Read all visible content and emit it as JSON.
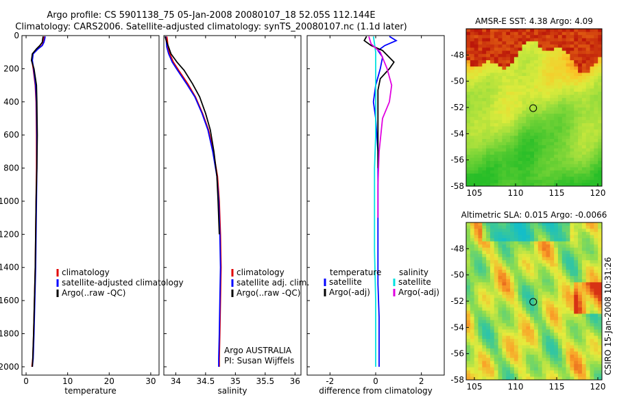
{
  "title_line1": "Argo profile: CS 5901138_75 05-Jan-2008 20080107_18 52.05S 112.144E",
  "title_line2": "Climatology: CARS2006. Satellite-adjusted climatology: synTS_20080107.nc (1.1d later)",
  "side_text": "CSIRO 15-Jan-2008 10:31:26",
  "colors": {
    "climatology": "#e00000",
    "satellite": "#0000ff",
    "argo": "#000000",
    "cyan": "#00e0e0",
    "magenta": "#e000e0"
  },
  "chart_data": [
    {
      "id": "temperature",
      "type": "line",
      "xlabel": "temperature",
      "ylabel": "",
      "xlim": [
        -1,
        32
      ],
      "ylim": [
        2050,
        0
      ],
      "xticks": [
        0,
        10,
        20,
        30
      ],
      "xtick_labels": [
        "0",
        "10",
        "20",
        "30"
      ],
      "yticks": [
        0,
        200,
        400,
        600,
        800,
        1000,
        1200,
        1400,
        1600,
        1800,
        2000
      ],
      "ytick_labels": [
        "0",
        "200",
        "400",
        "600",
        "800",
        "1000",
        "1200",
        "1400",
        "1600",
        "1800",
        "2000"
      ],
      "legend": [
        {
          "label": "climatology",
          "color": "#e00000"
        },
        {
          "label": "satellite-adjusted climatology",
          "color": "#0000ff"
        },
        {
          "label": "Argo(..raw -QC)",
          "color": "#000000"
        }
      ],
      "series": [
        {
          "name": "climatology",
          "color": "#e00000",
          "x": [
            4.4,
            4.3,
            4.2,
            3.8,
            2.8,
            1.6,
            1.4,
            1.7,
            2.2,
            2.4,
            2.5,
            2.5,
            2.4,
            2.3,
            2.2,
            2.0,
            1.8,
            1.6,
            1.4
          ],
          "y": [
            5,
            20,
            40,
            60,
            80,
            110,
            150,
            200,
            300,
            400,
            600,
            800,
            1000,
            1200,
            1400,
            1600,
            1800,
            1950,
            2000
          ]
        },
        {
          "name": "satellite",
          "color": "#0000ff",
          "x": [
            4.6,
            4.5,
            4.3,
            3.9,
            2.9,
            1.7,
            1.5,
            1.8,
            2.3,
            2.5,
            2.6,
            2.6,
            2.5,
            2.4,
            2.3,
            2.1,
            1.9,
            1.7,
            1.5
          ],
          "y": [
            5,
            20,
            40,
            60,
            80,
            110,
            150,
            200,
            300,
            400,
            600,
            800,
            1000,
            1200,
            1400,
            1600,
            1800,
            1950,
            2000
          ]
        },
        {
          "name": "argo",
          "color": "#000000",
          "x": [
            4.1,
            4.0,
            3.9,
            3.3,
            2.5,
            1.5,
            1.3,
            1.9,
            2.5,
            2.6,
            2.7,
            2.6,
            2.4,
            2.3,
            2.2,
            2.0,
            1.8,
            1.6,
            1.5
          ],
          "y": [
            5,
            20,
            40,
            60,
            80,
            110,
            150,
            200,
            300,
            400,
            600,
            800,
            1000,
            1200,
            1400,
            1600,
            1800,
            1950,
            2000
          ]
        }
      ]
    },
    {
      "id": "salinity",
      "type": "line",
      "xlabel": "salinity",
      "ylabel": "",
      "xlim": [
        33.8,
        36.1
      ],
      "ylim": [
        2050,
        0
      ],
      "xticks": [
        34,
        34.5,
        35,
        35.5,
        36
      ],
      "xtick_labels": [
        "34",
        "34.5",
        "35",
        "35.5",
        "36"
      ],
      "yticks": [
        0,
        200,
        400,
        600,
        800,
        1000,
        1200,
        1400,
        1600,
        1800,
        2000
      ],
      "legend": [
        {
          "label": "climatology",
          "color": "#e00000"
        },
        {
          "label": "satellite adj. clim.",
          "color": "#0000ff"
        },
        {
          "label": "Argo(..raw -QC)",
          "color": "#000000"
        }
      ],
      "annotations": [
        "Argo AUSTRALIA",
        "PI: Susan Wijffels"
      ],
      "series": [
        {
          "name": "climatology",
          "color": "#e00000",
          "x": [
            33.85,
            33.86,
            33.87,
            33.9,
            33.96,
            34.05,
            34.2,
            34.33,
            34.45,
            34.55,
            34.63,
            34.7,
            34.73,
            34.75,
            34.76,
            34.75,
            34.74,
            34.73,
            34.73
          ],
          "y": [
            5,
            30,
            70,
            110,
            160,
            210,
            290,
            370,
            470,
            570,
            700,
            850,
            1000,
            1200,
            1400,
            1600,
            1800,
            1950,
            2000
          ]
        },
        {
          "name": "satellite",
          "color": "#0000ff",
          "x": [
            33.83,
            33.84,
            33.85,
            33.88,
            33.94,
            34.03,
            34.18,
            34.32,
            34.44,
            34.54,
            34.62,
            34.69,
            34.72,
            34.74,
            34.75,
            34.74,
            34.73,
            34.72,
            34.72
          ],
          "y": [
            5,
            30,
            70,
            110,
            160,
            210,
            290,
            370,
            470,
            570,
            700,
            850,
            1000,
            1200,
            1400,
            1600,
            1800,
            1950,
            2000
          ]
        },
        {
          "name": "argo",
          "color": "#000000",
          "x": [
            33.82,
            33.84,
            33.88,
            33.92,
            34.02,
            34.14,
            34.28,
            34.4,
            34.5,
            34.58,
            34.64,
            34.69,
            34.71,
            34.73
          ],
          "y": [
            5,
            30,
            70,
            110,
            160,
            210,
            290,
            370,
            470,
            570,
            700,
            850,
            1000,
            1200
          ]
        }
      ]
    },
    {
      "id": "difference",
      "type": "line",
      "xlabel": "difference from climatology",
      "ylabel": "",
      "xlim": [
        -3,
        3
      ],
      "ylim": [
        2050,
        0
      ],
      "xticks": [
        -2,
        0,
        2
      ],
      "xtick_labels": [
        "-2",
        "0",
        "2"
      ],
      "yticks": [
        0,
        200,
        400,
        600,
        800,
        1000,
        1200,
        1400,
        1600,
        1800,
        2000
      ],
      "legend_left_title": "temperature",
      "legend_right_title": "salinity",
      "legend": [
        {
          "label": "satellite",
          "color": "#0000ff"
        },
        {
          "label": "Argo(-adj)",
          "color": "#000000"
        },
        {
          "label": "satellite",
          "color": "#00e0e0"
        },
        {
          "label": "Argo(-adj)",
          "color": "#e000e0"
        }
      ],
      "series": [
        {
          "name": "temp satellite",
          "color": "#0000ff",
          "x": [
            0.6,
            0.9,
            0.4,
            0.1,
            0.3,
            0.2,
            0.0,
            -0.1,
            0.0,
            0.1,
            0.1,
            0.1,
            0.1,
            0.1,
            0.15,
            0.15,
            0.15,
            0.15
          ],
          "y": [
            5,
            30,
            60,
            90,
            130,
            200,
            300,
            400,
            500,
            700,
            900,
            1100,
            1300,
            1500,
            1700,
            1900,
            1950,
            2000
          ]
        },
        {
          "name": "temp argo",
          "color": "#000000",
          "x": [
            -0.4,
            -0.5,
            -0.2,
            0.3,
            0.8,
            0.6,
            0.2,
            0.1,
            0.1,
            0.1,
            0.1
          ],
          "y": [
            5,
            30,
            60,
            90,
            160,
            200,
            260,
            330,
            400,
            600,
            800
          ]
        },
        {
          "name": "sal satellite",
          "color": "#00e0e0",
          "x": [
            -0.1,
            -0.05,
            0.0,
            0.0,
            0.0,
            0.0,
            -0.05,
            -0.05,
            -0.05,
            0.0,
            0.0,
            0.0
          ],
          "y": [
            5,
            50,
            100,
            200,
            400,
            600,
            800,
            1000,
            1300,
            1600,
            1900,
            2000
          ]
        },
        {
          "name": "sal argo",
          "color": "#e000e0",
          "x": [
            -0.3,
            -0.2,
            0.2,
            0.5,
            0.7,
            0.6,
            0.3,
            0.15,
            0.1,
            0.1
          ],
          "y": [
            5,
            50,
            100,
            200,
            300,
            400,
            500,
            700,
            900,
            1100
          ]
        }
      ]
    },
    {
      "id": "sst_map",
      "type": "heatmap",
      "title": "AMSR-E SST: 4.38 Argo: 4.09",
      "xlim": [
        104,
        120.5
      ],
      "ylim": [
        -58,
        -46
      ],
      "xticks": [
        105,
        110,
        115,
        120
      ],
      "xtick_labels": [
        "105",
        "110",
        "115",
        "120"
      ],
      "yticks": [
        -48,
        -50,
        -52,
        -54,
        -56,
        -58
      ],
      "ytick_labels": [
        "-48",
        "-50",
        "-52",
        "-54",
        "-56",
        "-58"
      ],
      "marker": {
        "lon": 112.144,
        "lat": -52.05
      }
    },
    {
      "id": "sla_map",
      "type": "heatmap",
      "title": "Altimetric SLA: 0.015 Argo: -0.0066",
      "xlim": [
        104,
        120.5
      ],
      "ylim": [
        -58,
        -46
      ],
      "xticks": [
        105,
        110,
        115,
        120
      ],
      "xtick_labels": [
        "105",
        "110",
        "115",
        "120"
      ],
      "yticks": [
        -48,
        -50,
        -52,
        -54,
        -56,
        -58
      ],
      "ytick_labels": [
        "-48",
        "-50",
        "-52",
        "-54",
        "-56",
        "-58"
      ],
      "marker": {
        "lon": 112.144,
        "lat": -52.05
      }
    }
  ]
}
